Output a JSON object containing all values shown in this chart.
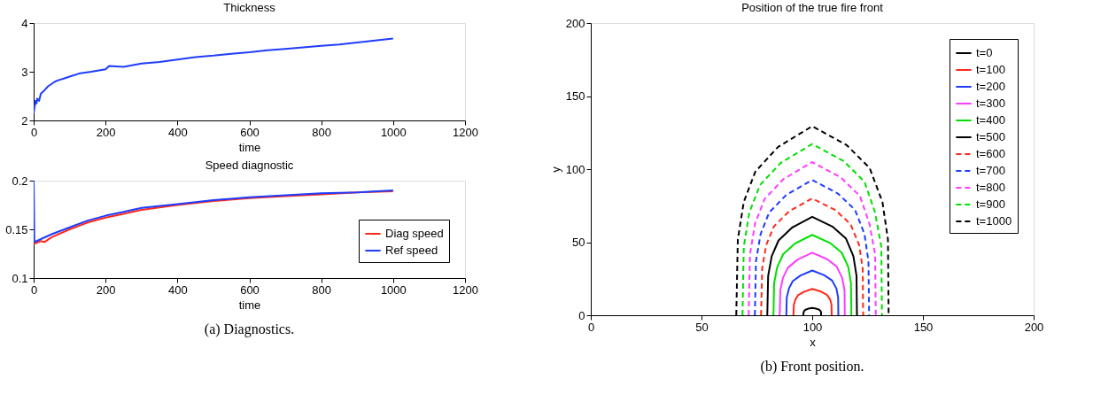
{
  "chart_data": [
    {
      "type": "line",
      "title": "Thickness",
      "xlabel": "time",
      "xlim": [
        0,
        1200
      ],
      "xticks": [
        0,
        200,
        400,
        600,
        800,
        1000,
        1200
      ],
      "ylim": [
        2,
        4
      ],
      "yticks": [
        2,
        3,
        4
      ],
      "legend": false,
      "series": [
        {
          "color": "#1f3cff",
          "x": [
            0,
            3,
            5,
            8,
            10,
            15,
            20,
            30,
            40,
            50,
            60,
            70,
            80,
            100,
            130,
            160,
            200,
            210,
            250,
            300,
            350,
            400,
            450,
            500,
            550,
            600,
            650,
            700,
            750,
            800,
            850,
            900,
            950,
            1000
          ],
          "values": [
            2.15,
            2.3,
            2.4,
            2.35,
            2.45,
            2.4,
            2.55,
            2.62,
            2.7,
            2.75,
            2.8,
            2.83,
            2.85,
            2.9,
            2.97,
            3.0,
            3.05,
            3.12,
            3.1,
            3.17,
            3.2,
            3.25,
            3.3,
            3.33,
            3.37,
            3.4,
            3.44,
            3.47,
            3.5,
            3.53,
            3.56,
            3.6,
            3.64,
            3.68
          ]
        }
      ]
    },
    {
      "type": "line",
      "title": "Speed diagnostic",
      "xlabel": "time",
      "xlim": [
        0,
        1200
      ],
      "xticks": [
        0,
        200,
        400,
        600,
        800,
        1000,
        1200
      ],
      "ylim": [
        0.1,
        0.2
      ],
      "yticks": [
        0.1,
        0.15,
        0.2
      ],
      "legend": "bottom right",
      "annotations": [
        "(a) Diagnostics."
      ],
      "series": [
        {
          "name": "Diag speed",
          "color": "#ff2a1a",
          "x": [
            0,
            20,
            30,
            50,
            100,
            150,
            200,
            250,
            300,
            400,
            500,
            600,
            700,
            800,
            900,
            1000
          ],
          "values": [
            0.135,
            0.138,
            0.137,
            0.142,
            0.15,
            0.157,
            0.162,
            0.166,
            0.17,
            0.175,
            0.179,
            0.182,
            0.184,
            0.186,
            0.188,
            0.189
          ]
        },
        {
          "name": "Ref speed",
          "color": "#1f3cff",
          "x": [
            0,
            2,
            20,
            50,
            100,
            150,
            200,
            250,
            300,
            400,
            500,
            600,
            700,
            800,
            900,
            1000
          ],
          "values": [
            0.2,
            0.137,
            0.14,
            0.145,
            0.152,
            0.159,
            0.164,
            0.168,
            0.172,
            0.176,
            0.18,
            0.183,
            0.185,
            0.187,
            0.188,
            0.19
          ]
        }
      ]
    },
    {
      "type": "line",
      "title": "Position of the true fire front",
      "xlabel": "x",
      "ylabel": "y",
      "xlim": [
        0,
        200
      ],
      "xticks": [
        0,
        50,
        100,
        150,
        200
      ],
      "ylim": [
        0,
        200
      ],
      "yticks": [
        0,
        50,
        100,
        150,
        200
      ],
      "legend": "top right",
      "annotations": [
        "(b) Front position."
      ],
      "series": [
        {
          "name": "t=0",
          "color": "#000000",
          "line_style": "solid",
          "x": [
            96,
            96.1,
            96.4,
            97,
            98.2,
            100,
            101.8,
            103,
            103.7,
            104,
            104
          ],
          "values": [
            0,
            2,
            3,
            3.8,
            4.5,
            5,
            4.5,
            3.9,
            3,
            2,
            0
          ]
        },
        {
          "name": "t=100",
          "color": "#ff2a1a",
          "line_style": "solid",
          "x": [
            91.5,
            91.7,
            92.4,
            93.6,
            96.2,
            100,
            104,
            106.6,
            108.1,
            108.7,
            108.8
          ],
          "values": [
            0,
            7.2,
            10.8,
            13.7,
            16,
            18,
            16.2,
            14,
            10.8,
            7.2,
            0
          ]
        },
        {
          "name": "t=200",
          "color": "#1f3cff",
          "line_style": "solid",
          "x": [
            88.3,
            88.5,
            89.5,
            91.2,
            94.7,
            100,
            105.3,
            108.9,
            110.9,
            111.7,
            111.8
          ],
          "values": [
            0,
            12.2,
            18.4,
            23.3,
            27.2,
            30.6,
            27.5,
            23.9,
            18.4,
            12.2,
            0
          ]
        },
        {
          "name": "t=300",
          "color": "#ff3cff",
          "line_style": "solid",
          "x": [
            85.3,
            85.6,
            86.8,
            89,
            93.4,
            100,
            106.6,
            111,
            113.5,
            114.6,
            114.7
          ],
          "values": [
            0,
            17.1,
            25.7,
            32.5,
            38.1,
            42.8,
            38.5,
            33.4,
            25.7,
            17.1,
            0
          ]
        },
        {
          "name": "t=400",
          "color": "#00e000",
          "line_style": "solid",
          "x": [
            82.5,
            82.8,
            84.2,
            86.9,
            92.1,
            100,
            108,
            113.3,
            116.3,
            117.5,
            117.7
          ],
          "values": [
            0,
            22,
            33,
            41.8,
            49,
            55,
            49.5,
            42.9,
            33,
            22,
            0
          ]
        },
        {
          "name": "t=500",
          "color": "#000000",
          "line_style": "solid",
          "x": [
            79.7,
            80.1,
            81.7,
            84.8,
            90.9,
            100,
            109.1,
            115.2,
            118.6,
            120,
            120.2
          ],
          "values": [
            0,
            27,
            40.4,
            51.2,
            60,
            67.4,
            60.7,
            52.6,
            40.4,
            27,
            0
          ]
        },
        {
          "name": "t=600",
          "color": "#ff2a1a",
          "line_style": "dashed",
          "x": [
            76.9,
            77.4,
            79.2,
            82.7,
            89.6,
            100,
            110.4,
            117.3,
            121.2,
            122.8,
            123
          ],
          "values": [
            0,
            32,
            48,
            60.8,
            71.2,
            80,
            72,
            62.4,
            48,
            32,
            0
          ]
        },
        {
          "name": "t=700",
          "color": "#1f3cff",
          "line_style": "dashed",
          "x": [
            74.1,
            74.6,
            76.7,
            80.6,
            88.3,
            100,
            111.6,
            119.3,
            123.6,
            125.4,
            125.7
          ],
          "values": [
            0,
            37,
            55.6,
            70.4,
            82.4,
            92.6,
            83.3,
            72.2,
            55.6,
            37,
            0
          ]
        },
        {
          "name": "t=800",
          "color": "#ff3cff",
          "line_style": "dashed",
          "x": [
            71.3,
            71.9,
            74.2,
            78.5,
            87.1,
            100,
            112.9,
            121.5,
            125.8,
            128.4,
            128.7
          ],
          "values": [
            0,
            41.9,
            62.9,
            79.6,
            93.3,
            104.8,
            94.3,
            81.7,
            62.9,
            41.9,
            0
          ]
        },
        {
          "name": "t=900",
          "color": "#00e000",
          "line_style": "dashed",
          "x": [
            68.5,
            69.1,
            71.6,
            76.4,
            85.8,
            100,
            114.2,
            123.6,
            128.4,
            131.2,
            131.5
          ],
          "values": [
            0,
            46.9,
            70.3,
            89.1,
            104.3,
            117.2,
            105.5,
            91.4,
            70.3,
            46.9,
            0
          ]
        },
        {
          "name": "t=1000",
          "color": "#000000",
          "line_style": "dashed",
          "x": [
            65.7,
            66.4,
            69.1,
            74.3,
            84.6,
            100,
            115.5,
            125.9,
            131.7,
            134.2,
            134.5
          ],
          "values": [
            0,
            51.8,
            77.6,
            98.3,
            115.2,
            129.4,
            116.5,
            100.9,
            77.6,
            51.8,
            0
          ]
        }
      ]
    }
  ]
}
